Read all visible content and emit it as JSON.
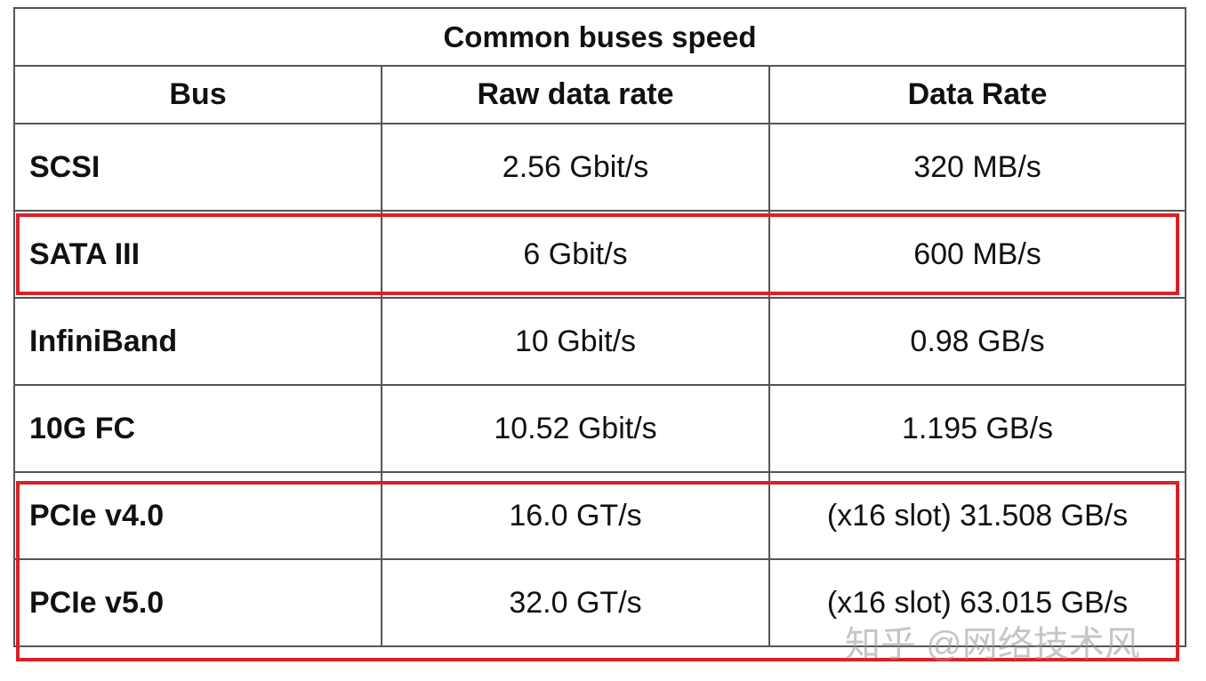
{
  "table": {
    "title": "Common buses speed",
    "header": [
      "Bus",
      "Raw data rate",
      "Data Rate"
    ],
    "rows": [
      [
        "SCSI",
        "2.56 Gbit/s",
        "320 MB/s"
      ],
      [
        "SATA III",
        "6 Gbit/s",
        "600 MB/s"
      ],
      [
        "InfiniBand",
        "10 Gbit/s",
        "0.98 GB/s"
      ],
      [
        "10G FC",
        "10.52 Gbit/s",
        "1.195 GB/s"
      ],
      [
        "PCIe v4.0",
        "16.0 GT/s",
        "(x16 slot) 31.508 GB/s"
      ],
      [
        "PCIe v5.0",
        "32.0 GT/s",
        "(x16 slot) 63.015 GB/s"
      ]
    ]
  },
  "watermark": "知乎 @网络技术风"
}
